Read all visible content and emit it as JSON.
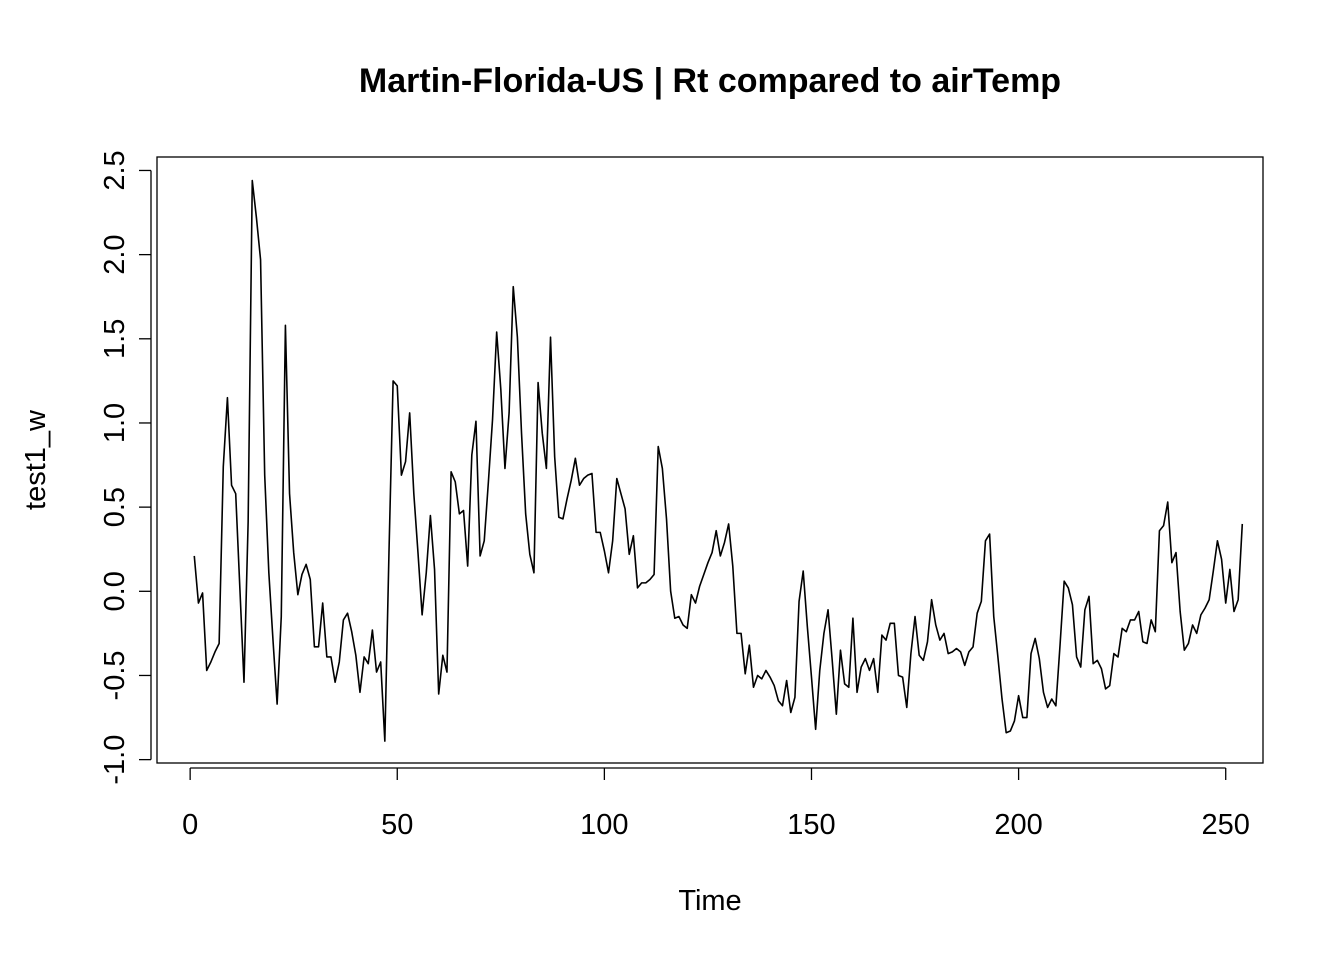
{
  "chart_data": {
    "type": "line",
    "title": "Martin-Florida-US | Rt compared to airTemp",
    "xlabel": "Time",
    "ylabel": "test1_w",
    "xlim": [
      -8,
      259
    ],
    "ylim": [
      -1.02,
      2.58
    ],
    "x_ticks": [
      0,
      50,
      100,
      150,
      200,
      250
    ],
    "x_tick_labels": [
      "0",
      "50",
      "100",
      "150",
      "200",
      "250"
    ],
    "y_ticks": [
      -1.0,
      -0.5,
      0.0,
      0.5,
      1.0,
      1.5,
      2.0,
      2.5
    ],
    "y_tick_labels": [
      "-1.0",
      "-0.5",
      "0.0",
      "0.5",
      "1.0",
      "1.5",
      "2.0",
      "2.5"
    ],
    "grid": false,
    "line_color": "#000000",
    "x_start": 1,
    "series": [
      {
        "values": [
          0.21,
          -0.07,
          -0.01,
          -0.47,
          -0.42,
          -0.36,
          -0.31,
          0.74,
          1.15,
          0.63,
          0.58,
          0.02,
          -0.54,
          0.41,
          2.44,
          2.22,
          1.97,
          0.69,
          0.11,
          -0.29,
          -0.67,
          -0.15,
          1.58,
          0.58,
          0.23,
          -0.02,
          0.1,
          0.16,
          0.07,
          -0.33,
          -0.33,
          -0.07,
          -0.39,
          -0.39,
          -0.54,
          -0.42,
          -0.17,
          -0.13,
          -0.24,
          -0.38,
          -0.6,
          -0.39,
          -0.43,
          -0.23,
          -0.48,
          -0.42,
          -0.89,
          0.23,
          1.25,
          1.22,
          0.69,
          0.77,
          1.06,
          0.58,
          0.23,
          -0.14,
          0.11,
          0.45,
          0.13,
          -0.61,
          -0.38,
          -0.48,
          0.71,
          0.65,
          0.46,
          0.48,
          0.15,
          0.81,
          1.01,
          0.21,
          0.3,
          0.65,
          1.02,
          1.54,
          1.2,
          0.73,
          1.06,
          1.81,
          1.51,
          0.94,
          0.46,
          0.22,
          0.11,
          1.24,
          0.94,
          0.73,
          1.51,
          0.8,
          0.44,
          0.43,
          0.55,
          0.66,
          0.79,
          0.63,
          0.67,
          0.69,
          0.7,
          0.35,
          0.35,
          0.24,
          0.11,
          0.3,
          0.67,
          0.58,
          0.49,
          0.22,
          0.33,
          0.02,
          0.05,
          0.05,
          0.07,
          0.1,
          0.86,
          0.73,
          0.43,
          0.0,
          -0.16,
          -0.15,
          -0.2,
          -0.22,
          -0.02,
          -0.07,
          0.03,
          0.1,
          0.17,
          0.23,
          0.36,
          0.21,
          0.29,
          0.4,
          0.15,
          -0.25,
          -0.25,
          -0.49,
          -0.32,
          -0.57,
          -0.5,
          -0.52,
          -0.47,
          -0.51,
          -0.56,
          -0.65,
          -0.68,
          -0.53,
          -0.72,
          -0.63,
          -0.06,
          0.12,
          -0.21,
          -0.51,
          -0.82,
          -0.47,
          -0.25,
          -0.11,
          -0.41,
          -0.73,
          -0.35,
          -0.55,
          -0.57,
          -0.16,
          -0.6,
          -0.45,
          -0.4,
          -0.47,
          -0.4,
          -0.6,
          -0.26,
          -0.29,
          -0.19,
          -0.19,
          -0.5,
          -0.51,
          -0.69,
          -0.37,
          -0.15,
          -0.38,
          -0.41,
          -0.3,
          -0.05,
          -0.2,
          -0.29,
          -0.25,
          -0.37,
          -0.36,
          -0.34,
          -0.36,
          -0.44,
          -0.36,
          -0.33,
          -0.13,
          -0.06,
          0.3,
          0.34,
          -0.15,
          -0.39,
          -0.64,
          -0.84,
          -0.83,
          -0.77,
          -0.62,
          -0.75,
          -0.75,
          -0.37,
          -0.28,
          -0.4,
          -0.6,
          -0.69,
          -0.64,
          -0.68,
          -0.32,
          0.06,
          0.02,
          -0.08,
          -0.39,
          -0.45,
          -0.11,
          -0.03,
          -0.43,
          -0.41,
          -0.46,
          -0.58,
          -0.56,
          -0.37,
          -0.39,
          -0.22,
          -0.24,
          -0.17,
          -0.17,
          -0.12,
          -0.3,
          -0.31,
          -0.17,
          -0.24,
          0.36,
          0.39,
          0.53,
          0.17,
          0.23,
          -0.12,
          -0.35,
          -0.31,
          -0.2,
          -0.25,
          -0.14,
          -0.1,
          -0.05,
          0.12,
          0.3,
          0.19,
          -0.07,
          0.13,
          -0.12,
          -0.05,
          0.4
        ]
      }
    ]
  }
}
